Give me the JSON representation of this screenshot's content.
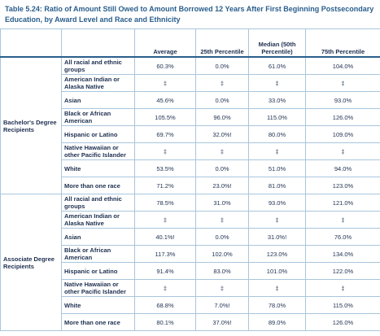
{
  "title": "Table 5.24: Ratio of Amount Still Owed to Amount Borrowed 12 Years After First Beginning Postsecondary Education, by Award Level and Race and Ethnicity",
  "table": {
    "headers": [
      "Average",
      "25th Percentile",
      "Median (50th Percentile)",
      "75th Percentile"
    ],
    "groups": [
      {
        "label": "Bachelor's Degree Recipients",
        "rows": [
          [
            "All racial and ethnic groups",
            "60.3%",
            "0.0%",
            "61.0%",
            "104.0%"
          ],
          [
            "American Indian or Alaska Native",
            "‡",
            "‡",
            "‡",
            "‡"
          ],
          [
            "Asian",
            "45.6%",
            "0.0%",
            "33.0%",
            "93.0%"
          ],
          [
            "Black or African American",
            "105.5%",
            "96.0%",
            "115.0%",
            "126.0%"
          ],
          [
            "Hispanic or Latino",
            "69.7%",
            "32.0%!",
            "80.0%",
            "109.0%"
          ],
          [
            "Native Hawaiian or other Pacific Islander",
            "‡",
            "‡",
            "‡",
            "‡"
          ],
          [
            "White",
            "53.5%",
            "0.0%",
            "51.0%",
            "94.0%"
          ],
          [
            "More than one race",
            "71.2%",
            "23.0%!",
            "81.0%",
            "123.0%"
          ]
        ]
      },
      {
        "label": "Associate Degree Recipients",
        "rows": [
          [
            "All racial and ethnic groups",
            "78.5%",
            "31.0%",
            "93.0%",
            "121.0%"
          ],
          [
            "American Indian or Alaska Native",
            "‡",
            "‡",
            "‡",
            "‡"
          ],
          [
            "Asian",
            "40.1%!",
            "0.0%",
            "31.0%!",
            "76.0%"
          ],
          [
            "Black or African American",
            "117.3%",
            "102.0%",
            "123.0%",
            "134.0%"
          ],
          [
            "Hispanic or Latino",
            "91.4%",
            "83.0%",
            "101.0%",
            "122.0%"
          ],
          [
            "Native Hawaiian or other Pacific Islander",
            "‡",
            "‡",
            "‡",
            "‡"
          ],
          [
            "White",
            "68.8%",
            "7.0%!",
            "78.0%",
            "115.0%"
          ],
          [
            "More than one race",
            "80.1%",
            "37.0%!",
            "89.0%",
            "126.0%"
          ]
        ]
      }
    ]
  }
}
